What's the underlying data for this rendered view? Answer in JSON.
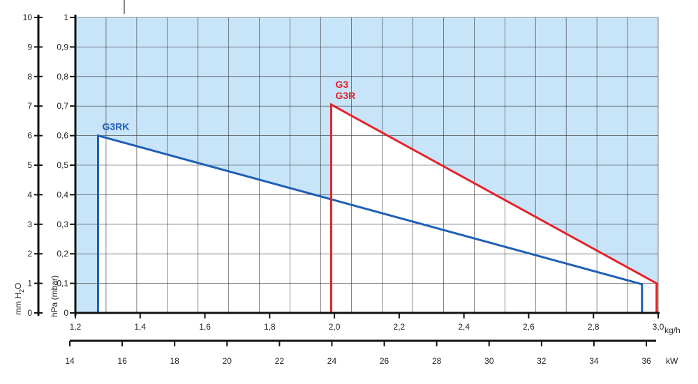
{
  "chart_data": {
    "type": "area",
    "colors": {
      "background": "#c8e4f8",
      "region_fill": "#ffffff",
      "grid": "#333333",
      "axis": "#111111",
      "series_g3rk": "#1f5fb5",
      "series_g3": "#e3222a"
    },
    "x_axis_kgh": {
      "label": "kg/h",
      "range": [
        1.2,
        3.0
      ],
      "ticks": [
        "1,2",
        "1,4",
        "1,6",
        "1,8",
        "2,0",
        "2,2",
        "2,4",
        "2,6",
        "2,8",
        "3,0"
      ]
    },
    "x_axis_kw": {
      "label": "kW",
      "range": [
        14,
        36
      ],
      "ticks": [
        "14",
        "16",
        "18",
        "20",
        "22",
        "24",
        "26",
        "28",
        "30",
        "32",
        "34",
        "36"
      ]
    },
    "y_axis_hpa": {
      "label": "hPa (mbar)",
      "range": [
        0,
        1
      ],
      "ticks": [
        "0",
        "0,1",
        "0,2",
        "0,3",
        "0,4",
        "0,5",
        "0,6",
        "0,7",
        "0,8",
        "0,9",
        "1"
      ]
    },
    "y_axis_mmh2o": {
      "label_main": "mm H",
      "label_sub": "2",
      "label_end": "O",
      "range": [
        0,
        10
      ],
      "ticks": [
        "0",
        "1",
        "2",
        "3",
        "4",
        "5",
        "6",
        "7",
        "8",
        "9",
        "10"
      ]
    },
    "grid": true,
    "series": [
      {
        "name": "G3RK",
        "label_lines": [
          "G3RK"
        ],
        "color_key": "series_g3rk",
        "points": [
          [
            1.27,
            0.0
          ],
          [
            1.27,
            0.6
          ],
          [
            2.95,
            0.097
          ],
          [
            2.95,
            0.0
          ]
        ]
      },
      {
        "name": "G3 / G3R",
        "label_lines": [
          "G3",
          "G3R"
        ],
        "color_key": "series_g3",
        "points": [
          [
            1.99,
            0.0
          ],
          [
            1.99,
            0.705
          ],
          [
            2.995,
            0.1
          ],
          [
            2.995,
            0.0
          ]
        ]
      }
    ]
  }
}
